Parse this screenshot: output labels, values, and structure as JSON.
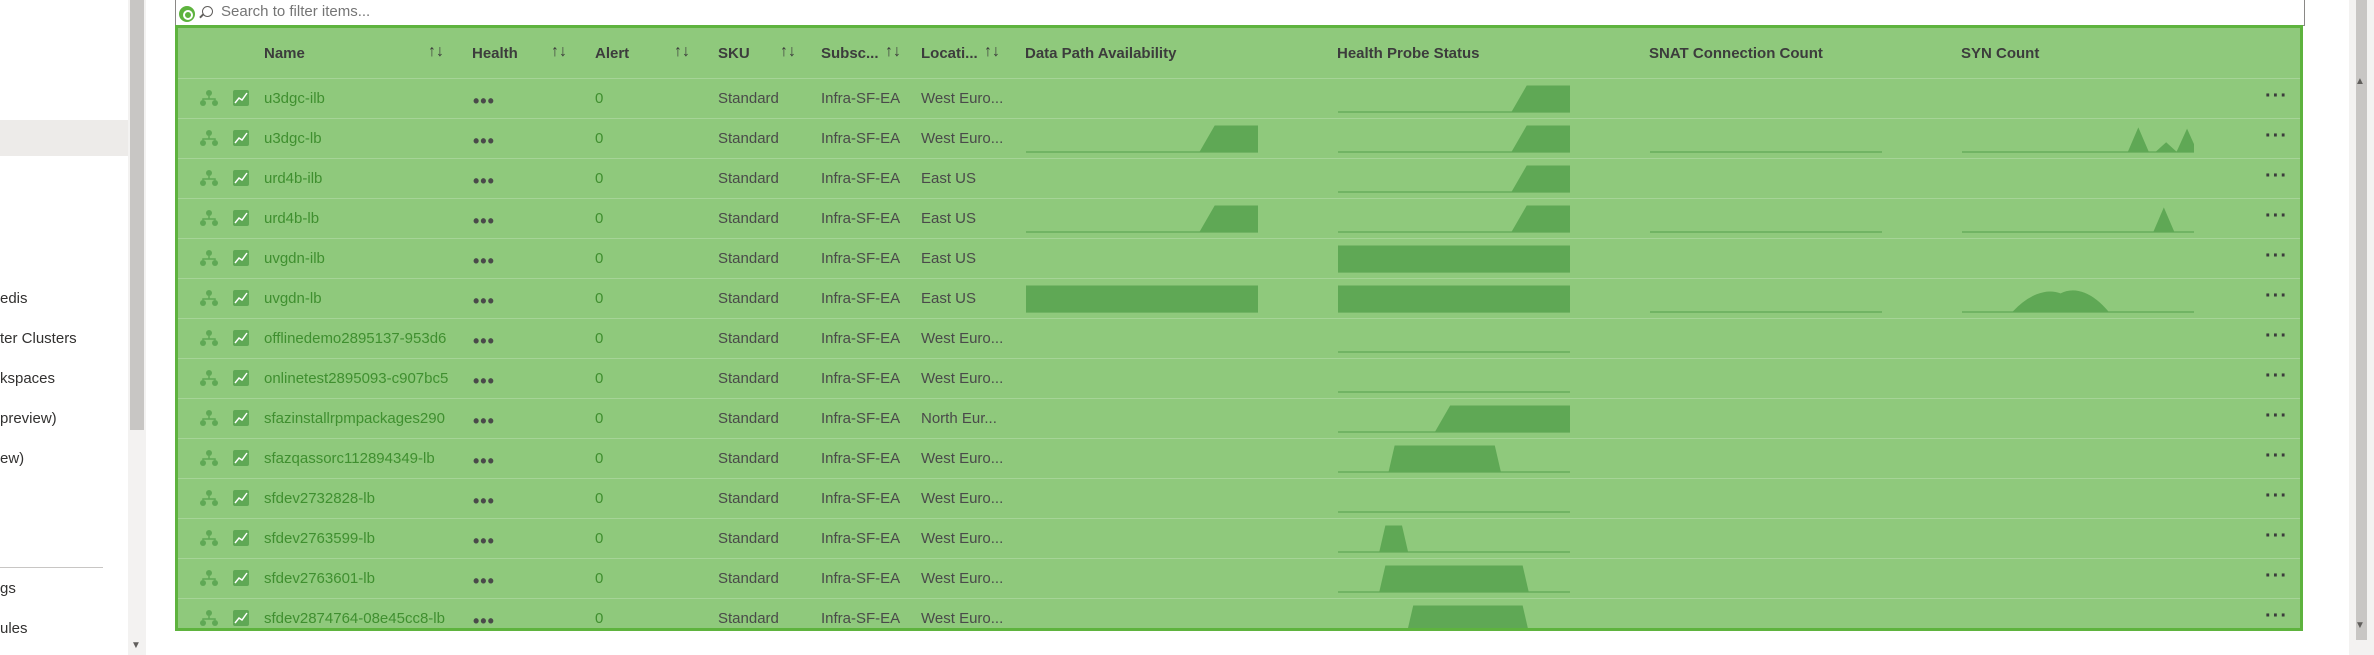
{
  "sidebar": {
    "items": [
      {
        "label": "edis"
      },
      {
        "label": "ter Clusters"
      },
      {
        "label": "kspaces"
      },
      {
        "label": "preview)"
      },
      {
        "label": "ew)"
      },
      {
        "label": "gs"
      },
      {
        "label": "ules"
      }
    ]
  },
  "filter": {
    "placeholder": "Search to filter items..."
  },
  "columns": {
    "name": "Name",
    "health": "Health",
    "alert": "Alert",
    "sku": "SKU",
    "subscription": "Subsc...",
    "location": "Locati...",
    "data_path": "Data Path Availability",
    "probe": "Health Probe Status",
    "snat": "SNAT Connection Count",
    "syn": "SYN Count"
  },
  "sort_glyph": "↑↓",
  "health_glyph": "•••",
  "more_glyph": "···",
  "colors": {
    "accent": "#5eb33e",
    "overlay": "#8fc97c",
    "link": "#3f8f2f",
    "spark": "#5fa855"
  },
  "rows": [
    {
      "name": "u3dgc-ilb",
      "alert": "0",
      "sku": "Standard",
      "subscription": "Infra-SF-EA",
      "location": "West Euro...",
      "sparks": {
        "probe": {
          "type": "ramp",
          "start": 0.75
        }
      }
    },
    {
      "name": "u3dgc-lb",
      "alert": "0",
      "sku": "Standard",
      "subscription": "Infra-SF-EA",
      "location": "West Euro...",
      "sparks": {
        "data_path": {
          "type": "ramp",
          "start": 0.75
        },
        "probe": {
          "type": "ramp",
          "start": 0.75
        },
        "snat": {
          "type": "flat"
        },
        "syn": {
          "type": "peaks",
          "peaks": [
            0.76,
            0.88,
            0.97
          ],
          "heights": [
            0.9,
            0.35,
            0.85
          ]
        }
      }
    },
    {
      "name": "urd4b-ilb",
      "alert": "0",
      "sku": "Standard",
      "subscription": "Infra-SF-EA",
      "location": "East US",
      "sparks": {
        "probe": {
          "type": "ramp",
          "start": 0.75
        }
      }
    },
    {
      "name": "urd4b-lb",
      "alert": "0",
      "sku": "Standard",
      "subscription": "Infra-SF-EA",
      "location": "East US",
      "sparks": {
        "data_path": {
          "type": "ramp",
          "start": 0.75
        },
        "probe": {
          "type": "ramp",
          "start": 0.75
        },
        "snat": {
          "type": "flat"
        },
        "syn": {
          "type": "peaks",
          "peaks": [
            0.87
          ],
          "heights": [
            0.9
          ]
        }
      }
    },
    {
      "name": "uvgdn-ilb",
      "alert": "0",
      "sku": "Standard",
      "subscription": "Infra-SF-EA",
      "location": "East US",
      "sparks": {
        "probe": {
          "type": "full"
        }
      }
    },
    {
      "name": "uvgdn-lb",
      "alert": "0",
      "sku": "Standard",
      "subscription": "Infra-SF-EA",
      "location": "East US",
      "sparks": {
        "data_path": {
          "type": "full"
        },
        "probe": {
          "type": "full"
        },
        "snat": {
          "type": "flat"
        },
        "syn": {
          "type": "hump",
          "start": 0.22,
          "end": 0.63
        }
      }
    },
    {
      "name": "offlinedemo2895137-953d6",
      "alert": "0",
      "sku": "Standard",
      "subscription": "Infra-SF-EA",
      "location": "West Euro...",
      "sparks": {
        "probe": {
          "type": "flat"
        }
      }
    },
    {
      "name": "onlinetest2895093-c907bc5",
      "alert": "0",
      "sku": "Standard",
      "subscription": "Infra-SF-EA",
      "location": "West Euro...",
      "sparks": {
        "probe": {
          "type": "flat"
        }
      }
    },
    {
      "name": "sfazinstallrpmpackages290",
      "alert": "0",
      "sku": "Standard",
      "subscription": "Infra-SF-EA",
      "location": "North Eur...",
      "sparks": {
        "probe": {
          "type": "ramp",
          "start": 0.42
        }
      }
    },
    {
      "name": "sfazqassorc112894349-lb",
      "alert": "0",
      "sku": "Standard",
      "subscription": "Infra-SF-EA",
      "location": "West Euro...",
      "sparks": {
        "probe": {
          "type": "pulse",
          "start": 0.22,
          "end": 0.7
        }
      }
    },
    {
      "name": "sfdev2732828-lb",
      "alert": "0",
      "sku": "Standard",
      "subscription": "Infra-SF-EA",
      "location": "West Euro...",
      "sparks": {
        "probe": {
          "type": "flat"
        }
      }
    },
    {
      "name": "sfdev2763599-lb",
      "alert": "0",
      "sku": "Standard",
      "subscription": "Infra-SF-EA",
      "location": "West Euro...",
      "sparks": {
        "probe": {
          "type": "pulse",
          "start": 0.18,
          "end": 0.3
        }
      }
    },
    {
      "name": "sfdev2763601-lb",
      "alert": "0",
      "sku": "Standard",
      "subscription": "Infra-SF-EA",
      "location": "West Euro...",
      "sparks": {
        "probe": {
          "type": "pulse",
          "start": 0.18,
          "end": 0.82
        }
      }
    },
    {
      "name": "sfdev2874764-08e45cc8-lb",
      "alert": "0",
      "sku": "Standard",
      "subscription": "Infra-SF-EA",
      "location": "West Euro...",
      "sparks": {
        "probe": {
          "type": "pulse",
          "start": 0.3,
          "end": 0.82
        }
      }
    }
  ]
}
